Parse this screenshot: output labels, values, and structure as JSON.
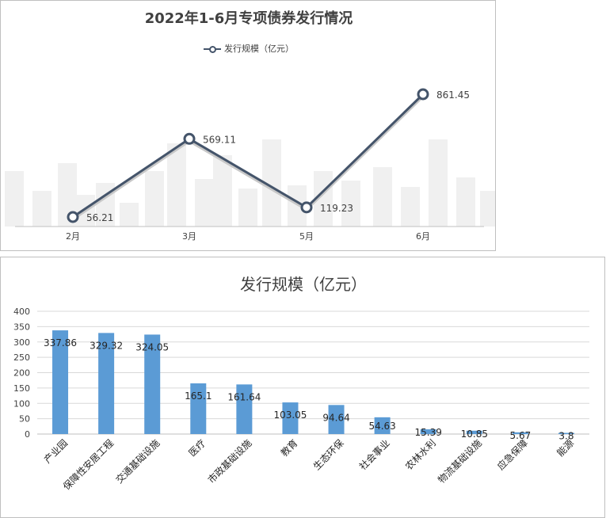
{
  "charts": [
    {
      "type": "line",
      "title": "2022年1-6月专项债券发行情况",
      "legend": "发行规模（亿元）",
      "legend_position": "top",
      "categories": [
        "2月",
        "3月",
        "5月",
        "6月"
      ],
      "values": [
        56.21,
        569.11,
        119.23,
        861.45
      ],
      "value_labels": [
        "56.21",
        "569.11",
        "119.23",
        "861.45"
      ],
      "colors": {
        "line": "#44546a"
      }
    },
    {
      "type": "bar",
      "title": "发行规模（亿元）",
      "categories": [
        "产业园",
        "保障性安居工程",
        "交通基础设施",
        "医疗",
        "市政基础设施",
        "教育",
        "生态环保",
        "社会事业",
        "农林水利",
        "物流基础设施",
        "应急保障",
        "能源"
      ],
      "values": [
        337.86,
        329.32,
        324.05,
        165.1,
        161.64,
        103.05,
        94.64,
        54.63,
        15.39,
        10.85,
        5.67,
        3.8
      ],
      "value_labels": [
        "337.86",
        "329.32",
        "324.05",
        "165.1",
        "161.64",
        "103.05",
        "94.64",
        "54.63",
        "15.39",
        "10.85",
        "5.67",
        "3.8"
      ],
      "ylim": [
        0,
        400
      ],
      "yticks": [
        "0",
        "50",
        "100",
        "150",
        "200",
        "250",
        "300",
        "350",
        "400"
      ],
      "grid": true,
      "colors": {
        "bar": "#5b9bd5"
      }
    }
  ]
}
